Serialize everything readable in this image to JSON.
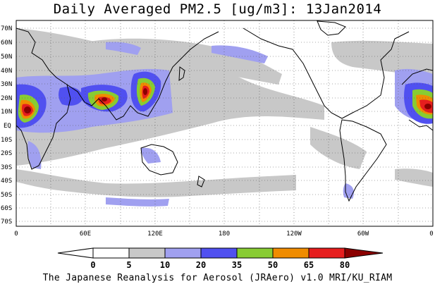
{
  "title": "Daily Averaged PM2.5 [ug/m3]: 13Jan2014",
  "lat_labels": [
    "70N",
    "60N",
    "50N",
    "40N",
    "30N",
    "20N",
    "10N",
    "EQ",
    "10S",
    "20S",
    "30S",
    "40S",
    "50S",
    "60S",
    "70S"
  ],
  "lon_labels": [
    "0",
    "60E",
    "120E",
    "180",
    "120W",
    "60W",
    "0"
  ],
  "colorbar": {
    "levels": [
      "0",
      "5",
      "10",
      "20",
      "35",
      "50",
      "65",
      "80"
    ],
    "colors": [
      "#ffffff",
      "#c8c8c8",
      "#a0a0f0",
      "#5050f0",
      "#88cc33",
      "#f08c00",
      "#e61e1e",
      "#8b0000"
    ]
  },
  "footer": "The Japanese Reanalysis for Aerosol (JRAero) v1.0 MRI/KU_RIAM"
}
